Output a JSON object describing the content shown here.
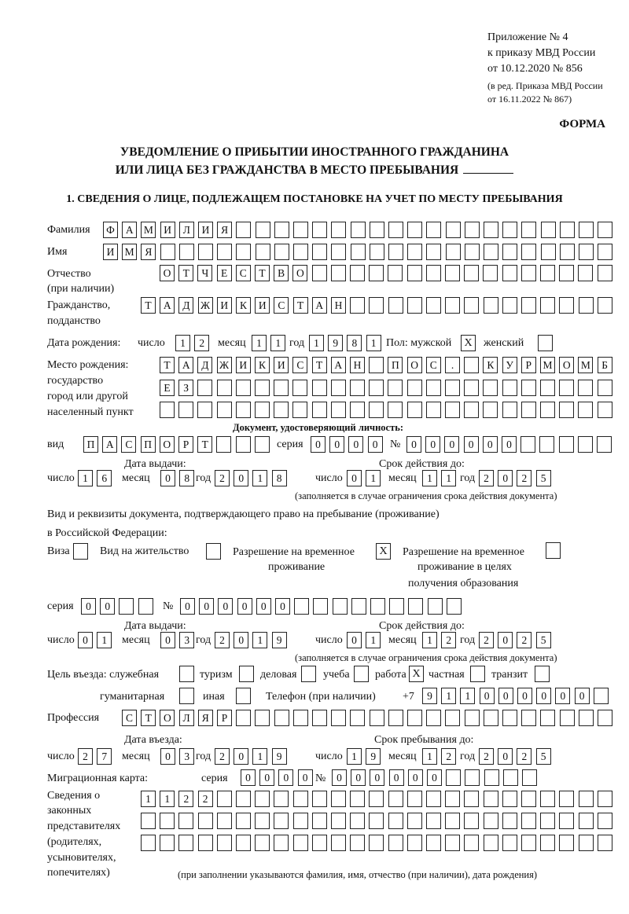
{
  "header": {
    "appendix": [
      "Приложение № 4",
      "к приказу МВД России",
      "от 10.12.2020 № 856"
    ],
    "revision": [
      "(в ред. Приказа МВД России",
      "от 16.11.2022 № 867)"
    ],
    "form_label": "ФОРМА",
    "title_line1": "УВЕДОМЛЕНИЕ О ПРИБЫТИИ ИНОСТРАННОГО ГРАЖДАНИНА",
    "title_line2": "ИЛИ ЛИЦА БЕЗ ГРАЖДАНСТВА В МЕСТО ПРЕБЫВАНИЯ",
    "section1": "1. СВЕДЕНИЯ О ЛИЦЕ, ПОДЛЕЖАЩЕМ ПОСТАНОВКЕ НА УЧЕТ ПО МЕСТУ ПРЕБЫВАНИЯ"
  },
  "labels": {
    "surname": "Фамилия",
    "name": "Имя",
    "patronymic": [
      "Отчество",
      "(при наличии)"
    ],
    "citizenship": [
      "Гражданство,",
      "подданство"
    ],
    "birth_date": "Дата рождения:",
    "day": "число",
    "month": "месяц",
    "year": "год",
    "sex": "Пол: мужской",
    "female": "женский",
    "birth_place": [
      "Место рождения:",
      "государство",
      "город или другой",
      "населенный пункт"
    ],
    "id_doc": "Документ, удостоверяющий личность:",
    "kind": "вид",
    "series": "серия",
    "number": "№",
    "issue_date": "Дата выдачи:",
    "valid_until": "Срок действия до:",
    "validity_note": "(заполняется в случае ограничения срока действия документа)",
    "right_doc": [
      "Вид и реквизиты документа, подтверждающего право на пребывание (проживание)",
      "в Российской Федерации:"
    ],
    "visa": "Виза",
    "residence_permit": "Вид на жительство",
    "temp_residence": [
      "Разрешение на временное",
      "проживание"
    ],
    "temp_residence_edu": [
      "Разрешение на временное",
      "проживание в целях",
      "получения образования"
    ],
    "purpose": "Цель въезда: служебная",
    "tourism": "туризм",
    "business": "деловая",
    "study": "учеба",
    "work": "работа",
    "private": "частная",
    "transit": "транзит",
    "humanitarian": "гуманитарная",
    "other": "иная",
    "phone": "Телефон (при наличии)",
    "phone_prefix": "+7",
    "profession": "Профессия",
    "entry_date": "Дата въезда:",
    "stay_until": "Срок пребывания до:",
    "migration_card": "Миграционная карта:",
    "representatives": [
      "Сведения о",
      "законных",
      "представителях",
      "(родителях,",
      "усыновителях,",
      "попечителях)"
    ],
    "representatives_note": "(при заполнении указываются фамилия, имя, отчество (при наличии), дата рождения)"
  },
  "person": {
    "surname": "ФАМИЛИЯ",
    "name": "ИМЯ",
    "patronymic": "ОТЧЕСТВО",
    "citizenship": "ТАДЖИКИСТАН",
    "birth_day": "12",
    "birth_month": "11",
    "birth_year": "1981",
    "sex_male": "X",
    "sex_female": "",
    "birth_place": [
      "ТАДЖИКИСТАН ПОС. КУРМОМБ",
      "ЕЗ",
      ""
    ],
    "id_kind": "ПАСПОРТ",
    "id_series": "0000",
    "id_number": "000000",
    "id_issue": {
      "day": "16",
      "month": "08",
      "year": "2018"
    },
    "id_valid": {
      "day": "01",
      "month": "11",
      "year": "2025"
    },
    "right_doc_checks": {
      "visa": "",
      "residence_permit": "",
      "temp_residence": "X",
      "temp_residence_edu": ""
    },
    "right_doc_series": "00",
    "right_doc_number": "000000",
    "right_doc_issue": {
      "day": "01",
      "month": "03",
      "year": "2019"
    },
    "right_doc_valid": {
      "day": "01",
      "month": "12",
      "year": "2025"
    },
    "purpose_checks": {
      "official": "",
      "tourism": "",
      "business": "",
      "study": "",
      "work": "X",
      "private": "",
      "transit": "",
      "humanitarian": "",
      "other": ""
    },
    "phone": "911000000",
    "profession": "СТОЛЯР",
    "entry": {
      "day": "27",
      "month": "03",
      "year": "2019"
    },
    "stay_until": {
      "day": "19",
      "month": "12",
      "year": "2025"
    },
    "migration_series": "0000",
    "migration_number": "000000",
    "representatives": [
      "1122",
      "",
      ""
    ]
  }
}
